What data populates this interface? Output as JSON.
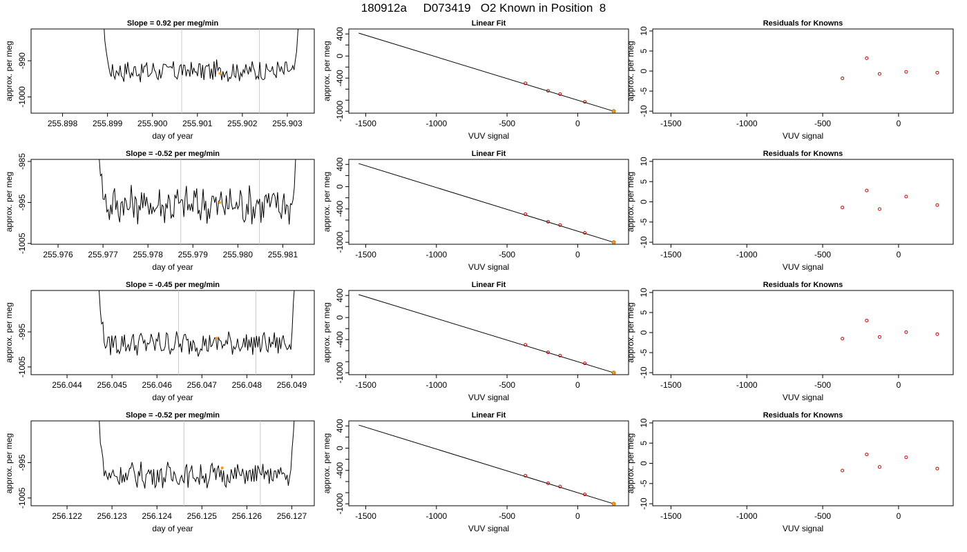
{
  "title": "180912a     D073419   O2 Known in Position  8",
  "chart_data": [
    {
      "type": "line",
      "row": 0,
      "title": "Slope =  0.92  per meg/min",
      "xlabel": "day of year",
      "ylabel": "approx. per meg",
      "x_ticks": [
        "255.898",
        "255.899",
        "255.900",
        "255.901",
        "255.902",
        "255.903"
      ],
      "x_tick_values": [
        255.898,
        255.899,
        255.9,
        255.901,
        255.902,
        255.903
      ],
      "y_ticks": [
        "-990",
        "-1000"
      ],
      "y_tick_values": [
        -990,
        -1000
      ],
      "xlim": [
        255.8973,
        255.9036
      ],
      "ylim": [
        -1004.5,
        -981.2
      ],
      "x_start": 255.8988,
      "x_end": 255.90332,
      "y_base": -992.8,
      "y_amp": 1.6,
      "vlines": [
        255.90065,
        255.90238
      ],
      "highlight": {
        "x": 255.9015,
        "y": -993.5
      }
    },
    {
      "type": "line",
      "row": 1,
      "title": "Slope =  -0.52  per meg/min",
      "xlabel": "day of year",
      "ylabel": "approx. per meg",
      "x_ticks": [
        "255.976",
        "255.977",
        "255.978",
        "255.979",
        "255.980",
        "255.981"
      ],
      "x_tick_values": [
        255.976,
        255.977,
        255.978,
        255.979,
        255.98,
        255.981
      ],
      "y_ticks": [
        "-985",
        "-995",
        "-1005"
      ],
      "y_tick_values": [
        -985,
        -995,
        -1005
      ],
      "xlim": [
        255.9754,
        255.9817
      ],
      "ylim": [
        -1005.2,
        -984.5
      ],
      "x_start": 255.9768,
      "x_end": 255.98137,
      "y_base": -995.5,
      "y_amp": 2.5,
      "vlines": [
        255.97873,
        255.98048
      ],
      "highlight": {
        "x": 255.9796,
        "y": -995
      }
    },
    {
      "type": "line",
      "row": 2,
      "title": "Slope =  -0.45  per meg/min",
      "xlabel": "day of year",
      "ylabel": "approx. per meg",
      "x_ticks": [
        "256.044",
        "256.045",
        "256.046",
        "256.047",
        "256.048",
        "256.049"
      ],
      "x_tick_values": [
        256.044,
        256.045,
        256.046,
        256.047,
        256.048,
        256.049
      ],
      "y_ticks": [
        "-995",
        "-1005"
      ],
      "y_tick_values": [
        -995,
        -1005
      ],
      "xlim": [
        256.0432,
        256.0495
      ],
      "ylim": [
        -1007.2,
        -983.2
      ],
      "x_start": 256.0446,
      "x_end": 256.04912,
      "y_base": -998.3,
      "y_amp": 1.8,
      "vlines": [
        256.04648,
        256.0482
      ],
      "highlight": {
        "x": 256.04733,
        "y": -996.8
      }
    },
    {
      "type": "line",
      "row": 3,
      "title": "Slope =  -0.52  per meg/min",
      "xlabel": "day of year",
      "ylabel": "approx. per meg",
      "x_ticks": [
        "256.122",
        "256.123",
        "256.124",
        "256.125",
        "256.126",
        "256.127"
      ],
      "x_tick_values": [
        256.122,
        256.123,
        256.124,
        256.125,
        256.126,
        256.127
      ],
      "y_ticks": [
        "-995",
        "-1005"
      ],
      "y_tick_values": [
        -995,
        -1005
      ],
      "xlim": [
        256.1212,
        256.1275
      ],
      "ylim": [
        -1007.2,
        -983.2
      ],
      "x_start": 256.1226,
      "x_end": 256.12712,
      "y_base": -998.5,
      "y_amp": 1.9,
      "vlines": [
        256.1246,
        256.1263
      ],
      "highlight": {
        "x": 256.12545,
        "y": -996.5
      }
    },
    {
      "type": "scatter",
      "row": 0,
      "title": "Linear Fit",
      "xlabel": "VUV signal",
      "ylabel": "approx. per meg",
      "x_ticks": [
        "-1500",
        "-1000",
        "-500",
        "0"
      ],
      "x_tick_values": [
        -1500,
        -1000,
        -500,
        0
      ],
      "y_ticks": [
        "400",
        "0",
        "-400",
        "-1000"
      ],
      "y_tick_values": [
        400,
        0,
        -400,
        -1000
      ],
      "xlim": [
        -1620,
        360
      ],
      "ylim": [
        -1035,
        490
      ],
      "line": [
        [
          -1550,
          415
        ],
        [
          255,
          -1000
        ]
      ],
      "points": [
        [
          -370,
          -495
        ],
        [
          -210,
          -630
        ],
        [
          -125,
          -690
        ],
        [
          50,
          -830
        ]
      ],
      "highlight": [
        255,
        -1000
      ]
    },
    {
      "type": "scatter",
      "row": 1,
      "title": "Linear Fit",
      "xlabel": "VUV signal",
      "ylabel": "approx. per meg",
      "x_ticks": [
        "-1500",
        "-1000",
        "-500",
        "0"
      ],
      "x_tick_values": [
        -1500,
        -1000,
        -500,
        0
      ],
      "y_ticks": [
        "400",
        "0",
        "-400",
        "-1000"
      ],
      "y_tick_values": [
        400,
        0,
        -400,
        -1000
      ],
      "xlim": [
        -1620,
        360
      ],
      "ylim": [
        -1035,
        490
      ],
      "line": [
        [
          -1550,
          415
        ],
        [
          255,
          -1000
        ]
      ],
      "points": [
        [
          -370,
          -495
        ],
        [
          -210,
          -630
        ],
        [
          -125,
          -690
        ],
        [
          50,
          -830
        ]
      ],
      "highlight": [
        255,
        -1000
      ]
    },
    {
      "type": "scatter",
      "row": 2,
      "title": "Linear Fit",
      "xlabel": "VUV signal",
      "ylabel": "approx. per meg",
      "x_ticks": [
        "-1500",
        "-1000",
        "-500",
        "0"
      ],
      "x_tick_values": [
        -1500,
        -1000,
        -500,
        0
      ],
      "y_ticks": [
        "400",
        "0",
        "-400",
        "-1000"
      ],
      "y_tick_values": [
        400,
        0,
        -400,
        -1000
      ],
      "xlim": [
        -1620,
        360
      ],
      "ylim": [
        -1035,
        490
      ],
      "line": [
        [
          -1550,
          415
        ],
        [
          255,
          -1000
        ]
      ],
      "points": [
        [
          -370,
          -495
        ],
        [
          -210,
          -630
        ],
        [
          -125,
          -690
        ],
        [
          50,
          -830
        ]
      ],
      "highlight": [
        255,
        -1000
      ]
    },
    {
      "type": "scatter",
      "row": 3,
      "title": "Linear Fit",
      "xlabel": "VUV signal",
      "ylabel": "approx. per meg",
      "x_ticks": [
        "-1500",
        "-1000",
        "-500",
        "0"
      ],
      "x_tick_values": [
        -1500,
        -1000,
        -500,
        0
      ],
      "y_ticks": [
        "400",
        "0",
        "-400",
        "-1000"
      ],
      "y_tick_values": [
        400,
        0,
        -400,
        -1000
      ],
      "xlim": [
        -1620,
        360
      ],
      "ylim": [
        -1035,
        490
      ],
      "line": [
        [
          -1550,
          415
        ],
        [
          255,
          -1000
        ]
      ],
      "points": [
        [
          -370,
          -495
        ],
        [
          -210,
          -630
        ],
        [
          -125,
          -690
        ],
        [
          50,
          -830
        ]
      ],
      "highlight": [
        255,
        -1000
      ]
    },
    {
      "type": "scatter",
      "row": 0,
      "title": "Residuals for Knowns",
      "xlabel": "VUV signal",
      "ylabel": "approx. per meg",
      "x_ticks": [
        "-1500",
        "-1000",
        "-500",
        "0"
      ],
      "x_tick_values": [
        -1500,
        -1000,
        -500,
        0
      ],
      "y_ticks": [
        "10",
        "5",
        "0",
        "-5",
        "-10"
      ],
      "y_tick_values": [
        10,
        5,
        0,
        -5,
        -10
      ],
      "xlim": [
        -1620,
        360
      ],
      "ylim": [
        -10.5,
        10.5
      ],
      "points": [
        [
          -370,
          -1.8
        ],
        [
          -210,
          3.2
        ],
        [
          -125,
          -0.7
        ],
        [
          50,
          -0.2
        ],
        [
          255,
          -0.4
        ]
      ]
    },
    {
      "type": "scatter",
      "row": 1,
      "title": "Residuals for Knowns",
      "xlabel": "VUV signal",
      "ylabel": "approx. per meg",
      "x_ticks": [
        "-1500",
        "-1000",
        "-500",
        "0"
      ],
      "x_tick_values": [
        -1500,
        -1000,
        -500,
        0
      ],
      "y_ticks": [
        "10",
        "5",
        "0",
        "-5",
        "-10"
      ],
      "y_tick_values": [
        10,
        5,
        0,
        -5,
        -10
      ],
      "xlim": [
        -1620,
        360
      ],
      "ylim": [
        -10.5,
        10.5
      ],
      "points": [
        [
          -370,
          -1.4
        ],
        [
          -210,
          2.8
        ],
        [
          -125,
          -1.8
        ],
        [
          50,
          1.3
        ],
        [
          255,
          -0.8
        ]
      ]
    },
    {
      "type": "scatter",
      "row": 2,
      "title": "Residuals for Knowns",
      "xlabel": "VUV signal",
      "ylabel": "approx. per meg",
      "x_ticks": [
        "-1500",
        "-1000",
        "-500",
        "0"
      ],
      "x_tick_values": [
        -1500,
        -1000,
        -500,
        0
      ],
      "y_ticks": [
        "10",
        "5",
        "0",
        "-5",
        "-10"
      ],
      "y_tick_values": [
        10,
        5,
        0,
        -5,
        -10
      ],
      "xlim": [
        -1620,
        360
      ],
      "ylim": [
        -10.5,
        10.5
      ],
      "points": [
        [
          -370,
          -1.5
        ],
        [
          -210,
          3.0
        ],
        [
          -125,
          -1.1
        ],
        [
          50,
          0.1
        ],
        [
          255,
          -0.4
        ]
      ]
    },
    {
      "type": "scatter",
      "row": 3,
      "title": "Residuals for Knowns",
      "xlabel": "VUV signal",
      "ylabel": "approx. per meg",
      "x_ticks": [
        "-1500",
        "-1000",
        "-500",
        "0"
      ],
      "x_tick_values": [
        -1500,
        -1000,
        -500,
        0
      ],
      "y_ticks": [
        "10",
        "5",
        "0",
        "-5",
        "-10"
      ],
      "y_tick_values": [
        10,
        5,
        0,
        -5,
        -10
      ],
      "xlim": [
        -1620,
        360
      ],
      "ylim": [
        -10.5,
        10.5
      ],
      "points": [
        [
          -370,
          -1.8
        ],
        [
          -210,
          2.2
        ],
        [
          -125,
          -0.9
        ],
        [
          50,
          1.5
        ],
        [
          255,
          -1.3
        ]
      ]
    }
  ],
  "colors": {
    "line": "#000000",
    "vline": "#c8c8c8",
    "highlight": "#ff9900",
    "residual": "#cc0000",
    "fit_point": "#cc0000"
  }
}
